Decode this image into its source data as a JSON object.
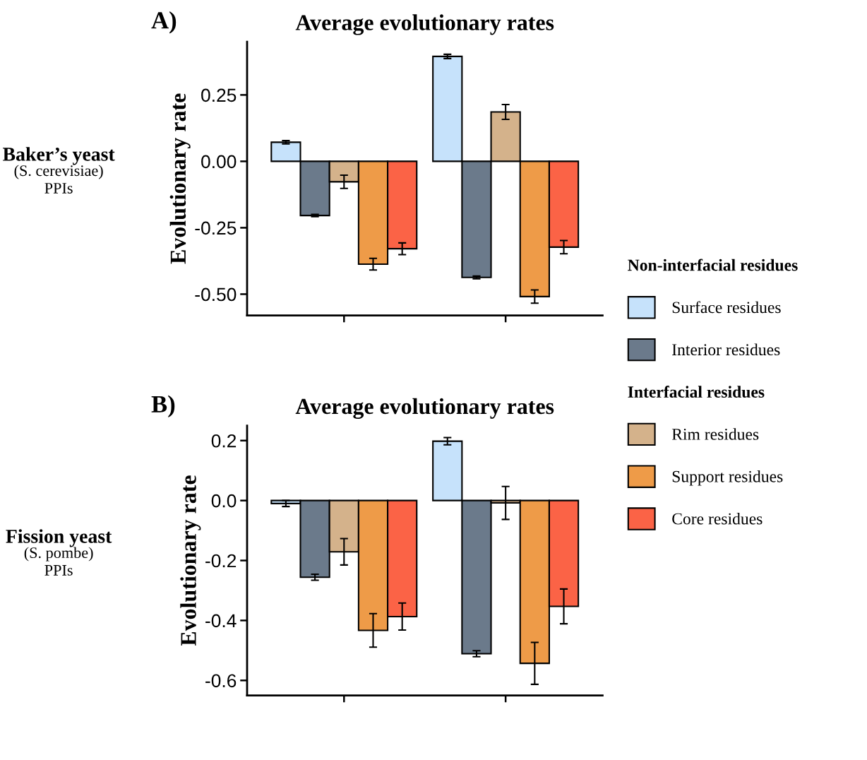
{
  "chart_data": [
    {
      "type": "bar",
      "title": "Average evolutionary rates",
      "ylabel": "Evolutionary rate",
      "categories": [
        null,
        null
      ],
      "series": [
        {
          "name": "Surface residues",
          "color": "#c6e2fb",
          "values": [
            0.072,
            0.395
          ],
          "errors": [
            0.006,
            0.008
          ]
        },
        {
          "name": "Interior residues",
          "color": "#6b7a8b",
          "values": [
            -0.204,
            -0.437
          ],
          "errors": [
            0.004,
            0.005
          ]
        },
        {
          "name": "Rim residues",
          "color": "#d4b28b",
          "values": [
            -0.077,
            0.186
          ],
          "errors": [
            0.025,
            0.028
          ]
        },
        {
          "name": "Support residues",
          "color": "#ee9b48",
          "values": [
            -0.387,
            -0.509
          ],
          "errors": [
            0.022,
            0.025
          ]
        },
        {
          "name": "Core residues",
          "color": "#fb6346",
          "values": [
            -0.329,
            -0.323
          ],
          "errors": [
            0.022,
            0.025
          ]
        }
      ],
      "ylim": [
        -0.58,
        0.45
      ],
      "yticks": [
        {
          "value": 0.25,
          "label": "0.25"
        },
        {
          "value": 0,
          "label": "0.00"
        },
        {
          "value": -0.25,
          "label": "-0.25"
        },
        {
          "value": -0.5,
          "label": "-0.50"
        }
      ],
      "legend": "right",
      "grid": false,
      "annotations": [
        "A)",
        "Baker’s yeast\n(S. cerevisiae)\nPPIs",
        "Non-interfacial residues",
        "Interfacial residues"
      ]
    },
    {
      "type": "bar",
      "title": "Average evolutionary rates",
      "ylabel": "Evolutionary rate",
      "categories": [
        null,
        null
      ],
      "series": [
        {
          "color": "#c6e2fb",
          "values": [
            -0.01,
            0.198
          ],
          "errors": [
            0.01,
            0.012
          ]
        },
        {
          "color": "#6b7a8b",
          "values": [
            -0.256,
            -0.511
          ],
          "errors": [
            0.01,
            0.01
          ]
        },
        {
          "color": "#d4b28b",
          "values": [
            -0.171,
            -0.008
          ],
          "errors": [
            0.044,
            0.055
          ]
        },
        {
          "color": "#ee9b48",
          "values": [
            -0.433,
            -0.543
          ],
          "errors": [
            0.056,
            0.07
          ]
        },
        {
          "color": "#fb6346",
          "values": [
            -0.387,
            -0.353
          ],
          "errors": [
            0.045,
            0.058
          ]
        }
      ],
      "ylim": [
        -0.65,
        0.25
      ],
      "yticks": [
        {
          "value": 0.2,
          "label": "0.2"
        },
        {
          "value": 0,
          "label": "0.0"
        },
        {
          "value": -0.2,
          "label": "-0.2"
        },
        {
          "value": -0.4,
          "label": "-0.4"
        },
        {
          "value": -0.6,
          "label": "-0.6"
        }
      ],
      "legend": false,
      "grid": false,
      "annotations": [
        "B)",
        "Fission yeast\n(S. pombe)\nPPIs"
      ]
    }
  ]
}
